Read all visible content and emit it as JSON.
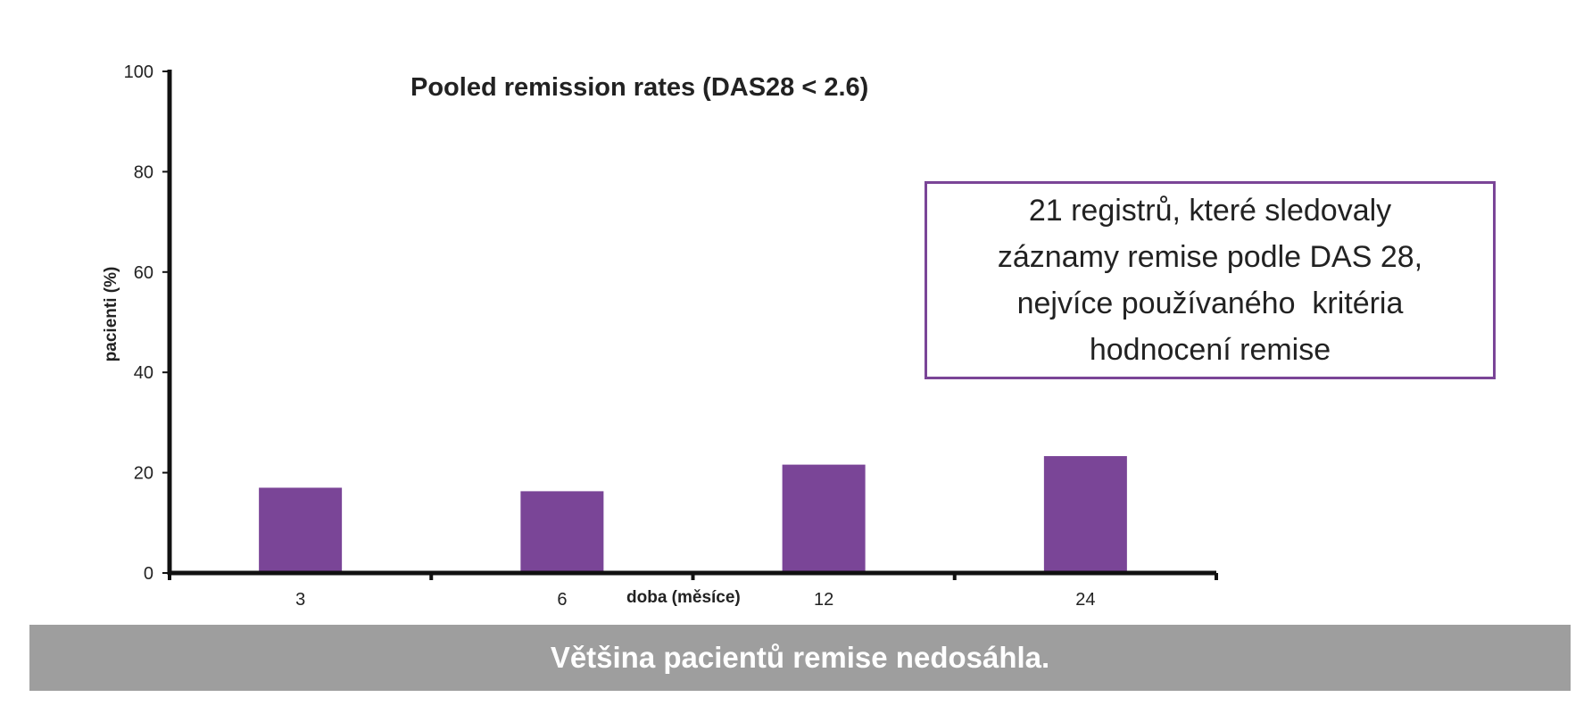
{
  "chart_data": {
    "type": "bar",
    "title": "Pooled remission rates (DAS28 < 2.6)",
    "xlabel": "doba (měsíce)",
    "ylabel": "pacienti (%)",
    "categories": [
      "3",
      "6",
      "12",
      "24"
    ],
    "values": [
      17,
      16.3,
      21.6,
      23.3
    ],
    "ylim": [
      0,
      100
    ],
    "yticks": [
      0,
      20,
      40,
      60,
      80,
      100
    ],
    "grid": false,
    "legend": "none",
    "bar_color": "#7a4597",
    "axis_color": "#111111"
  },
  "note": {
    "lines": [
      "21 registrů, které sledovaly",
      "záznamy remise podle DAS 28,",
      "nejvíce používaného  kritéria",
      "hodnocení remise"
    ],
    "border_color": "#7a4597"
  },
  "footer": {
    "text": "Většina pacientů remise nedosáhla.",
    "background": "#9e9e9e"
  }
}
